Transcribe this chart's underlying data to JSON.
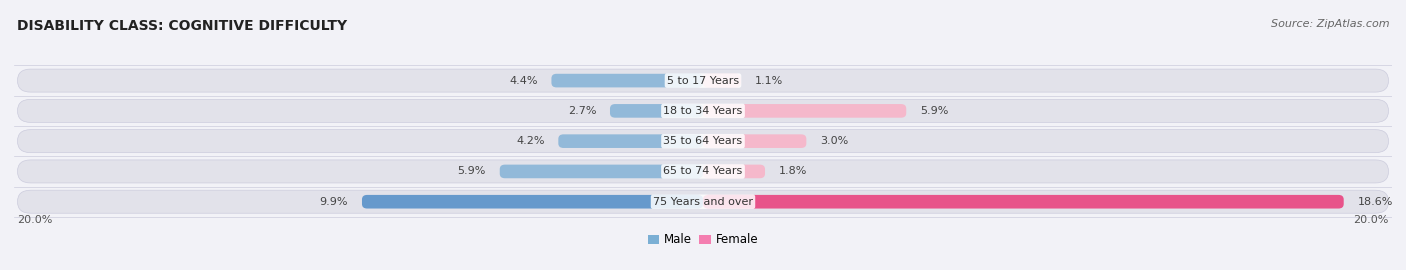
{
  "title": "DISABILITY CLASS: COGNITIVE DIFFICULTY",
  "source": "Source: ZipAtlas.com",
  "categories": [
    "5 to 17 Years",
    "18 to 34 Years",
    "35 to 64 Years",
    "65 to 74 Years",
    "75 Years and over"
  ],
  "male_values": [
    4.4,
    2.7,
    4.2,
    5.9,
    9.9
  ],
  "female_values": [
    1.1,
    5.9,
    3.0,
    1.8,
    18.6
  ],
  "male_colors": [
    "#92b9d9",
    "#92b9d9",
    "#92b9d9",
    "#92b9d9",
    "#6699cc"
  ],
  "female_colors": [
    "#f5b8cb",
    "#f5b8cb",
    "#f5b8cb",
    "#f5b8cb",
    "#e8538a"
  ],
  "male_label": "Male",
  "female_label": "Female",
  "legend_male_color": "#7bafd4",
  "legend_female_color": "#f47eb0",
  "xlim": 20.0,
  "axis_label_left": "20.0%",
  "axis_label_right": "20.0%",
  "bg_color": "#f2f2f7",
  "row_bg_color": "#e2e2ea",
  "row_bg_color_last": "#d8d8e5",
  "title_fontsize": 10,
  "source_fontsize": 8,
  "bar_label_fontsize": 8,
  "category_fontsize": 8
}
